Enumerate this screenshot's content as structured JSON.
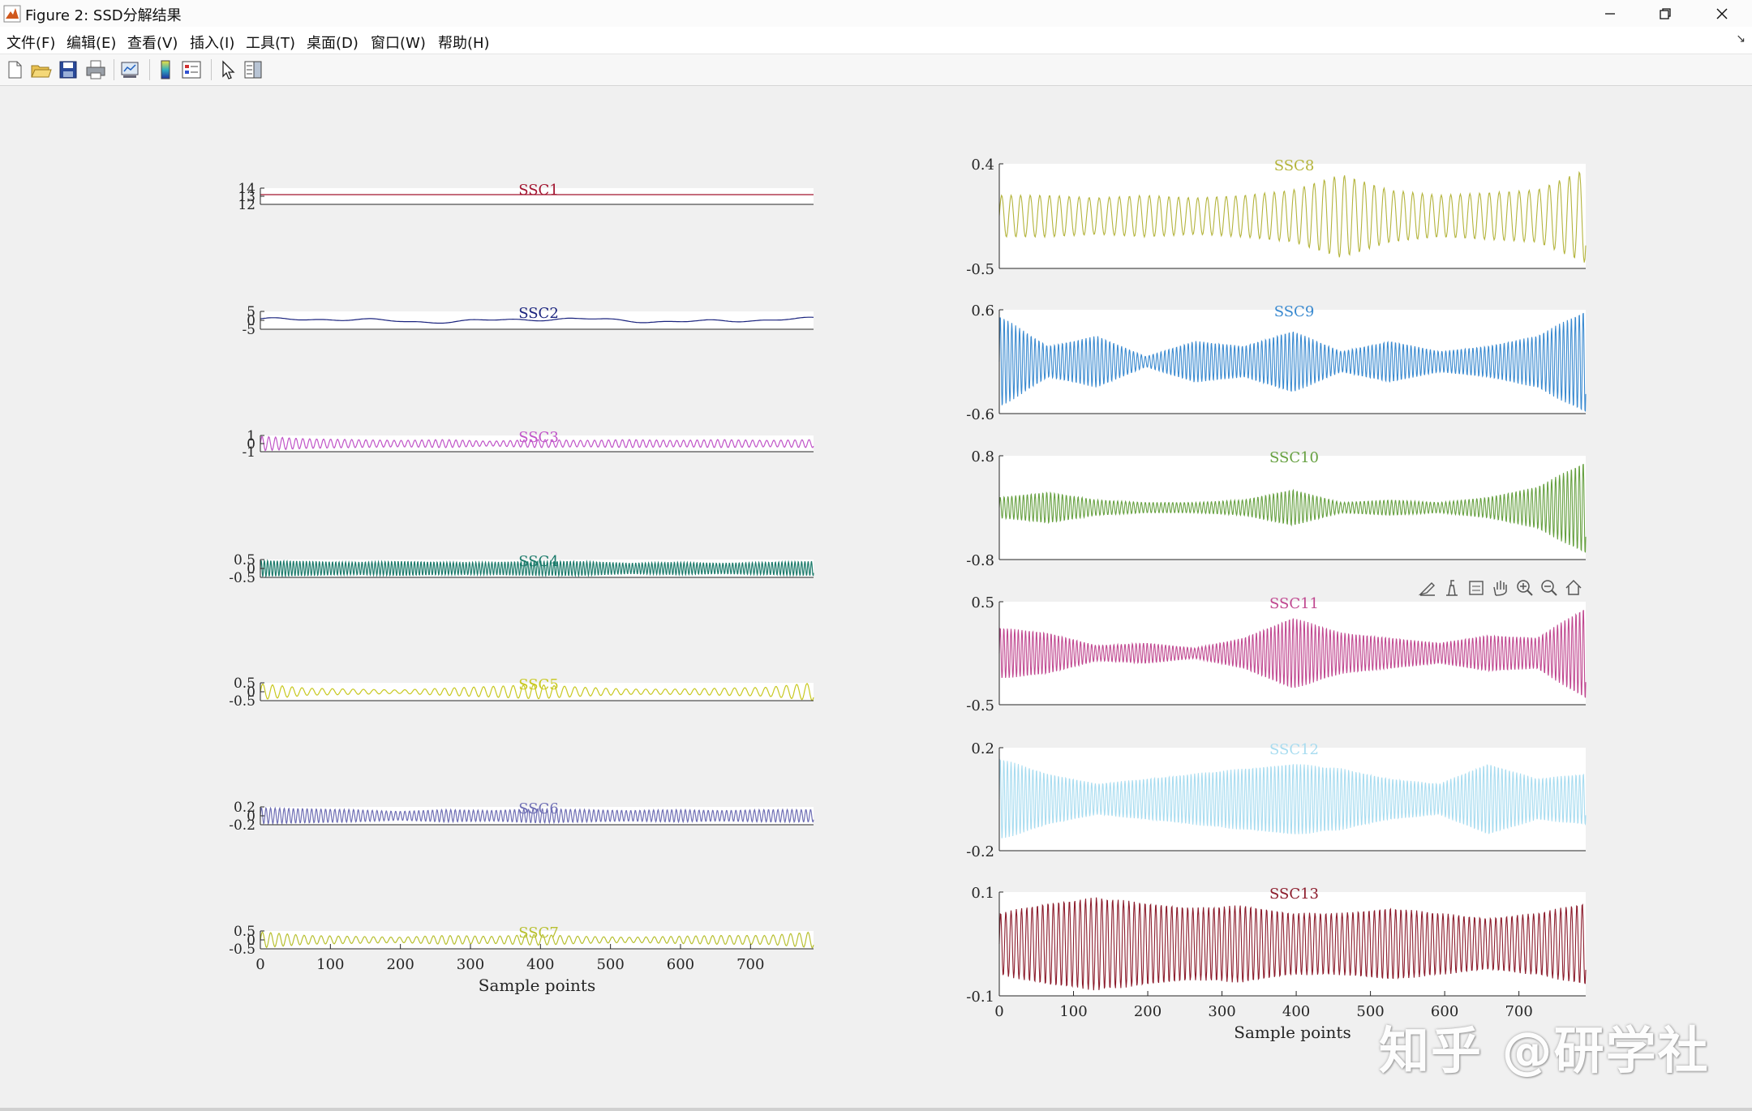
{
  "window": {
    "title": "Figure 2: SSD分解结果",
    "menus": [
      "文件(F)",
      "编辑(E)",
      "查看(V)",
      "插入(I)",
      "工具(T)",
      "桌面(D)",
      "窗口(W)",
      "帮助(H)"
    ],
    "toolbar_icons": [
      "new-figure-icon",
      "open-file-icon",
      "save-icon",
      "print-icon",
      "link-plot-icon",
      "colorbar-icon",
      "legend-icon",
      "pointer-icon",
      "property-inspector-icon"
    ],
    "axes_toolbar_icons": [
      "brush-icon",
      "datatip-icon",
      "export-icon",
      "pan-hand-icon",
      "zoom-in-icon",
      "zoom-out-icon",
      "home-icon"
    ]
  },
  "watermark": "知乎 @研学社",
  "colors": {
    "SSC1": "#a2142f",
    "SSC2": "#1a237e",
    "SSC3": "#c054c8",
    "SSC4": "#1a7a6a",
    "SSC5": "#c8c820",
    "SSC6": "#6e6eb4",
    "SSC7": "#b8c030",
    "SSC8": "#b4b43c",
    "SSC9": "#3a8ad0",
    "SSC10": "#66a040",
    "SSC11": "#c04890",
    "SSC12": "#a8dcf0",
    "SSC13": "#8c1c2c"
  },
  "chart_data": [
    {
      "type": "line",
      "title": "SSC1",
      "xlim": [
        0,
        790
      ],
      "ylim": [
        12,
        14
      ],
      "yticks": [
        "14",
        "13",
        "12"
      ],
      "waveform": {
        "kind": "constant",
        "level": 13.2
      }
    },
    {
      "type": "line",
      "title": "SSC2",
      "xlim": [
        0,
        790
      ],
      "ylim": [
        -5,
        5
      ],
      "yticks": [
        "5",
        "0",
        "-5"
      ],
      "waveform": {
        "kind": "trend",
        "amp": 2.5
      }
    },
    {
      "type": "line",
      "title": "SSC3",
      "xlim": [
        0,
        790
      ],
      "ylim": [
        -1,
        1
      ],
      "yticks": [
        "1",
        "0",
        "-1"
      ],
      "waveform": {
        "kind": "oscillation",
        "cycles": 80,
        "env": [
          0.9,
          0.6,
          0.5,
          0.4,
          0.5,
          0.3,
          0.5,
          0.4,
          0.5,
          0.4,
          0.5,
          0.4,
          0.5
        ]
      }
    },
    {
      "type": "line",
      "title": "SSC4",
      "xlim": [
        0,
        790
      ],
      "ylim": [
        -0.5,
        0.5
      ],
      "yticks": [
        "0.5",
        "0",
        "-0.5"
      ],
      "waveform": {
        "kind": "oscillation",
        "cycles": 170,
        "env": [
          0.9,
          0.8,
          0.7,
          0.8,
          0.7,
          0.7,
          0.8,
          0.8,
          0.6,
          0.7,
          0.6,
          0.7,
          0.8
        ]
      }
    },
    {
      "type": "line",
      "title": "SSC5",
      "xlim": [
        0,
        790
      ],
      "ylim": [
        -0.5,
        0.5
      ],
      "yticks": [
        "0.5",
        "0",
        "-0.5"
      ],
      "waveform": {
        "kind": "oscillation",
        "cycles": 55,
        "env": [
          0.9,
          0.4,
          0.3,
          0.2,
          0.4,
          0.6,
          0.8,
          0.5,
          0.3,
          0.3,
          0.4,
          0.5,
          1.0
        ]
      }
    },
    {
      "type": "line",
      "title": "SSC6",
      "xlim": [
        0,
        790
      ],
      "ylim": [
        -0.2,
        0.2
      ],
      "yticks": [
        "0.2",
        "0",
        "-0.2"
      ],
      "waveform": {
        "kind": "oscillation",
        "cycles": 120,
        "env": [
          0.9,
          0.8,
          0.7,
          0.5,
          0.7,
          0.6,
          0.8,
          0.7,
          0.6,
          0.7,
          0.6,
          0.7,
          0.7
        ]
      }
    },
    {
      "type": "line",
      "title": "SSC7",
      "xlim": [
        0,
        790
      ],
      "ylim": [
        -0.5,
        0.5
      ],
      "yticks": [
        "0.5",
        "0",
        "-0.5"
      ],
      "xticks": [
        "0",
        "100",
        "200",
        "300",
        "400",
        "500",
        "600",
        "700"
      ],
      "xlabel": "Sample points",
      "waveform": {
        "kind": "oscillation",
        "cycles": 65,
        "env": [
          0.9,
          0.5,
          0.4,
          0.3,
          0.5,
          0.4,
          0.6,
          0.4,
          0.3,
          0.4,
          0.5,
          0.5,
          0.9
        ]
      }
    },
    {
      "type": "line",
      "title": "SSC8",
      "xlim": [
        0,
        790
      ],
      "ylim": [
        -0.5,
        0.4
      ],
      "yticks": [
        "0.4",
        "-0.5"
      ],
      "waveform": {
        "kind": "oscillation",
        "cycles": 60,
        "env": [
          0.4,
          0.4,
          0.35,
          0.4,
          0.35,
          0.4,
          0.5,
          0.8,
          0.5,
          0.4,
          0.45,
          0.5,
          0.9
        ]
      }
    },
    {
      "type": "line",
      "title": "SSC9",
      "xlim": [
        0,
        790
      ],
      "ylim": [
        -0.6,
        0.6
      ],
      "yticks": [
        "0.6",
        "-0.6"
      ],
      "waveform": {
        "kind": "oscillation",
        "cycles": 150,
        "env": [
          0.9,
          0.3,
          0.5,
          0.1,
          0.4,
          0.3,
          0.6,
          0.2,
          0.4,
          0.2,
          0.3,
          0.5,
          1.0
        ]
      }
    },
    {
      "type": "line",
      "title": "SSC10",
      "xlim": [
        0,
        790
      ],
      "ylim": [
        -0.8,
        0.8
      ],
      "yticks": [
        "0.8",
        "-0.8"
      ],
      "waveform": {
        "kind": "oscillation",
        "cycles": 150,
        "env": [
          0.2,
          0.3,
          0.15,
          0.1,
          0.1,
          0.15,
          0.35,
          0.1,
          0.15,
          0.1,
          0.2,
          0.4,
          0.9
        ]
      }
    },
    {
      "type": "line",
      "title": "SSC11",
      "xlim": [
        0,
        790
      ],
      "ylim": [
        -0.5,
        0.5
      ],
      "yticks": [
        "0.5",
        "-0.5"
      ],
      "waveform": {
        "kind": "oscillation",
        "cycles": 160,
        "env": [
          0.5,
          0.4,
          0.15,
          0.2,
          0.1,
          0.3,
          0.7,
          0.4,
          0.3,
          0.2,
          0.35,
          0.3,
          0.9
        ]
      }
    },
    {
      "type": "line",
      "title": "SSC12",
      "xlim": [
        0,
        790
      ],
      "ylim": [
        -0.2,
        0.2
      ],
      "yticks": [
        "0.2",
        "-0.2"
      ],
      "waveform": {
        "kind": "oscillation",
        "cycles": 160,
        "env": [
          0.8,
          0.5,
          0.3,
          0.4,
          0.5,
          0.6,
          0.7,
          0.6,
          0.4,
          0.3,
          0.7,
          0.4,
          0.5
        ]
      }
    },
    {
      "type": "line",
      "title": "SSC13",
      "xlim": [
        0,
        790
      ],
      "ylim": [
        -0.1,
        0.1
      ],
      "yticks": [
        "0.1",
        "-0.1"
      ],
      "xticks": [
        "0",
        "100",
        "200",
        "300",
        "400",
        "500",
        "600",
        "700"
      ],
      "xlabel": "Sample points",
      "waveform": {
        "kind": "oscillation",
        "cycles": 110,
        "env": [
          0.6,
          0.8,
          0.9,
          0.8,
          0.7,
          0.75,
          0.6,
          0.6,
          0.7,
          0.6,
          0.5,
          0.6,
          0.8
        ]
      }
    }
  ]
}
